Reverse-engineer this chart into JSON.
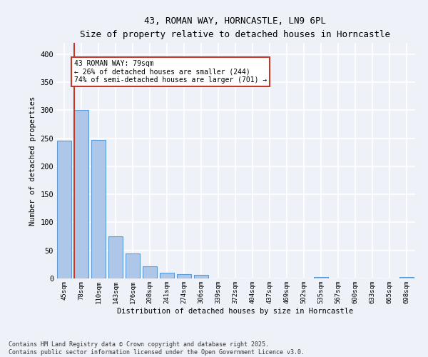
{
  "title_line1": "43, ROMAN WAY, HORNCASTLE, LN9 6PL",
  "title_line2": "Size of property relative to detached houses in Horncastle",
  "xlabel": "Distribution of detached houses by size in Horncastle",
  "ylabel": "Number of detached properties",
  "categories": [
    "45sqm",
    "78sqm",
    "110sqm",
    "143sqm",
    "176sqm",
    "208sqm",
    "241sqm",
    "274sqm",
    "306sqm",
    "339sqm",
    "372sqm",
    "404sqm",
    "437sqm",
    "469sqm",
    "502sqm",
    "535sqm",
    "567sqm",
    "600sqm",
    "633sqm",
    "665sqm",
    "698sqm"
  ],
  "values": [
    245,
    300,
    247,
    75,
    45,
    22,
    10,
    8,
    6,
    0,
    0,
    0,
    0,
    0,
    0,
    2,
    0,
    0,
    0,
    0,
    2
  ],
  "bar_color": "#aec6e8",
  "bar_edge_color": "#5b9bd5",
  "vline_color": "#c0392b",
  "annotation_text": "43 ROMAN WAY: 79sqm\n← 26% of detached houses are smaller (244)\n74% of semi-detached houses are larger (701) →",
  "annotation_box_color": "#c0392b",
  "ylim": [
    0,
    420
  ],
  "yticks": [
    0,
    50,
    100,
    150,
    200,
    250,
    300,
    350,
    400
  ],
  "background_color": "#eef2f8",
  "grid_color": "#ffffff",
  "footer_line1": "Contains HM Land Registry data © Crown copyright and database right 2025.",
  "footer_line2": "Contains public sector information licensed under the Open Government Licence v3.0."
}
